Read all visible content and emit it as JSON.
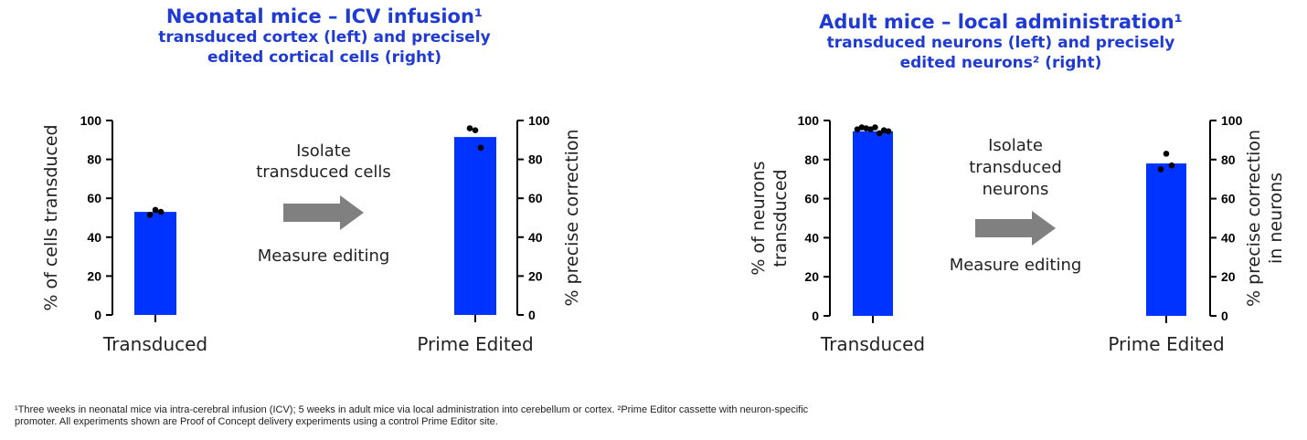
{
  "panels": [
    {
      "title": "Neonatal mice – ICV infusion¹",
      "subtitle_line1": "transduced cortex (left) and precisely",
      "subtitle_line2": "edited cortical cells (right)",
      "arrow_label_top": [
        "Isolate",
        "transduced cells"
      ],
      "arrow_label_bottom": "Measure editing"
    },
    {
      "title": "Adult mice – local administration¹",
      "subtitle_line1": "transduced neurons (left) and precisely",
      "subtitle_line2": "edited neurons² (right)",
      "arrow_label_top": [
        "Isolate",
        "transduced",
        "neurons"
      ],
      "arrow_label_bottom": "Measure editing"
    }
  ],
  "chart_data": [
    {
      "type": "bar",
      "categories": [
        "Transduced"
      ],
      "values": [
        53
      ],
      "points": [
        [
          51.5,
          54,
          53
        ]
      ],
      "ylabel": "% of cells transduced",
      "ylim": [
        0,
        100
      ],
      "yticks": [
        "0",
        "20",
        "40",
        "60",
        "80",
        "100"
      ],
      "bar_color": "#0033ff"
    },
    {
      "type": "bar",
      "categories": [
        "Prime Edited"
      ],
      "values": [
        91.5
      ],
      "points": [
        [
          96,
          95,
          86
        ]
      ],
      "ylabel": "% precise correction",
      "ylim": [
        0,
        100
      ],
      "yticks": [
        "0",
        "20",
        "40",
        "60",
        "80",
        "100"
      ],
      "bar_color": "#0033ff"
    },
    {
      "type": "bar",
      "categories": [
        "Transduced"
      ],
      "values": [
        94.5
      ],
      "points": [
        [
          95.5,
          96.5,
          96,
          95.5,
          96.5,
          93.5,
          95,
          94.5
        ]
      ],
      "ylabel": [
        "% of neurons",
        "transduced"
      ],
      "ylim": [
        0,
        100
      ],
      "yticks": [
        "0",
        "20",
        "40",
        "60",
        "80",
        "100"
      ],
      "bar_color": "#0033ff"
    },
    {
      "type": "bar",
      "categories": [
        "Prime Edited"
      ],
      "values": [
        78
      ],
      "points": [
        [
          75,
          83,
          77
        ]
      ],
      "ylabel": [
        "% precise correction",
        "in neurons"
      ],
      "ylim": [
        0,
        100
      ],
      "yticks": [
        "0",
        "20",
        "40",
        "60",
        "80",
        "100"
      ],
      "bar_color": "#0033ff"
    }
  ],
  "footnote": {
    "line1": "¹Three weeks in neonatal mice via intra-cerebral infusion (ICV); 5 weeks in adult mice via local administration into cerebellum or cortex. ²Prime Editor cassette with neuron-specific",
    "line2": "promoter.  All experiments shown are Proof of Concept delivery experiments using a control Prime Editor site."
  },
  "colors": {
    "title": "#1f3bd3",
    "bar": "#0033ff",
    "arrow": "#808080"
  }
}
